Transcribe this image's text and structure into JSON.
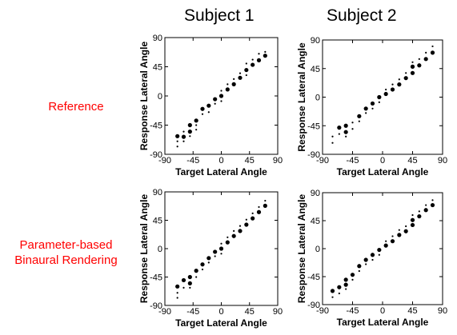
{
  "column_titles": [
    "Subject 1",
    "Subject 2"
  ],
  "row_labels": [
    [
      "Reference"
    ],
    [
      "Parameter-based",
      "Binaural Rendering"
    ]
  ],
  "chart_data": [
    {
      "type": "scatter",
      "panel": "reference-subject-1",
      "xlabel": "Target Lateral Angle",
      "ylabel": "Response Lateral Angle",
      "xlim": [
        -90,
        90
      ],
      "ylim": [
        -90,
        90
      ],
      "xticks": [
        "-90",
        "-45",
        "0",
        "45",
        "90"
      ],
      "yticks": [
        "90",
        "45",
        "0",
        "-45",
        "-90"
      ],
      "grid": false,
      "points": [
        {
          "x": -70,
          "y": -62,
          "size": 2
        },
        {
          "x": -70,
          "y": -70,
          "size": 1
        },
        {
          "x": -70,
          "y": -78,
          "size": 1
        },
        {
          "x": -60,
          "y": -55,
          "size": 1
        },
        {
          "x": -60,
          "y": -63,
          "size": 2
        },
        {
          "x": -60,
          "y": -70,
          "size": 1
        },
        {
          "x": -50,
          "y": -45,
          "size": 2
        },
        {
          "x": -50,
          "y": -55,
          "size": 2
        },
        {
          "x": -50,
          "y": -62,
          "size": 1
        },
        {
          "x": -40,
          "y": -38,
          "size": 2
        },
        {
          "x": -40,
          "y": -45,
          "size": 1
        },
        {
          "x": -40,
          "y": -52,
          "size": 1
        },
        {
          "x": -30,
          "y": -20,
          "size": 2
        },
        {
          "x": -30,
          "y": -28,
          "size": 1
        },
        {
          "x": -20,
          "y": -15,
          "size": 2
        },
        {
          "x": -20,
          "y": -25,
          "size": 1
        },
        {
          "x": -10,
          "y": -5,
          "size": 2
        },
        {
          "x": -10,
          "y": -12,
          "size": 1
        },
        {
          "x": 0,
          "y": 0,
          "size": 2
        },
        {
          "x": 0,
          "y": 8,
          "size": 1
        },
        {
          "x": 0,
          "y": -8,
          "size": 1
        },
        {
          "x": 10,
          "y": 10,
          "size": 2
        },
        {
          "x": 10,
          "y": 18,
          "size": 1
        },
        {
          "x": 20,
          "y": 18,
          "size": 2
        },
        {
          "x": 20,
          "y": 26,
          "size": 1
        },
        {
          "x": 30,
          "y": 28,
          "size": 2
        },
        {
          "x": 30,
          "y": 35,
          "size": 1
        },
        {
          "x": 40,
          "y": 40,
          "size": 2
        },
        {
          "x": 40,
          "y": 50,
          "size": 1
        },
        {
          "x": 40,
          "y": 32,
          "size": 1
        },
        {
          "x": 50,
          "y": 48,
          "size": 2
        },
        {
          "x": 50,
          "y": 56,
          "size": 1
        },
        {
          "x": 60,
          "y": 55,
          "size": 2
        },
        {
          "x": 60,
          "y": 65,
          "size": 1
        },
        {
          "x": 70,
          "y": 62,
          "size": 2
        },
        {
          "x": 70,
          "y": 68,
          "size": 1
        }
      ]
    },
    {
      "type": "scatter",
      "panel": "reference-subject-2",
      "xlabel": "Target Lateral Angle",
      "ylabel": "Response Lateral Angle",
      "xlim": [
        -90,
        90
      ],
      "ylim": [
        -90,
        90
      ],
      "xticks": [
        "-90",
        "-45",
        "0",
        "45",
        "90"
      ],
      "yticks": [
        "90",
        "45",
        "0",
        "-45",
        "-90"
      ],
      "grid": false,
      "points": [
        {
          "x": -75,
          "y": -62,
          "size": 1
        },
        {
          "x": -75,
          "y": -72,
          "size": 1
        },
        {
          "x": -65,
          "y": -48,
          "size": 2
        },
        {
          "x": -65,
          "y": -58,
          "size": 1
        },
        {
          "x": -55,
          "y": -45,
          "size": 2
        },
        {
          "x": -55,
          "y": -55,
          "size": 2
        },
        {
          "x": -55,
          "y": -62,
          "size": 1
        },
        {
          "x": -45,
          "y": -40,
          "size": 1
        },
        {
          "x": -45,
          "y": -50,
          "size": 1
        },
        {
          "x": -35,
          "y": -30,
          "size": 2
        },
        {
          "x": -35,
          "y": -38,
          "size": 1
        },
        {
          "x": -25,
          "y": -18,
          "size": 2
        },
        {
          "x": -25,
          "y": -25,
          "size": 1
        },
        {
          "x": -15,
          "y": -10,
          "size": 2
        },
        {
          "x": -15,
          "y": -18,
          "size": 1
        },
        {
          "x": -5,
          "y": 0,
          "size": 2
        },
        {
          "x": -5,
          "y": -8,
          "size": 1
        },
        {
          "x": 5,
          "y": 5,
          "size": 2
        },
        {
          "x": 5,
          "y": 12,
          "size": 1
        },
        {
          "x": 15,
          "y": 12,
          "size": 2
        },
        {
          "x": 15,
          "y": 20,
          "size": 1
        },
        {
          "x": 25,
          "y": 20,
          "size": 2
        },
        {
          "x": 25,
          "y": 28,
          "size": 1
        },
        {
          "x": 35,
          "y": 30,
          "size": 2
        },
        {
          "x": 35,
          "y": 38,
          "size": 1
        },
        {
          "x": 45,
          "y": 38,
          "size": 2
        },
        {
          "x": 45,
          "y": 48,
          "size": 2
        },
        {
          "x": 45,
          "y": 55,
          "size": 1
        },
        {
          "x": 55,
          "y": 50,
          "size": 2
        },
        {
          "x": 55,
          "y": 60,
          "size": 1
        },
        {
          "x": 65,
          "y": 60,
          "size": 2
        },
        {
          "x": 65,
          "y": 70,
          "size": 1
        },
        {
          "x": 75,
          "y": 70,
          "size": 2
        },
        {
          "x": 75,
          "y": 80,
          "size": 1
        }
      ]
    },
    {
      "type": "scatter",
      "panel": "rendering-subject-1",
      "xlabel": "Target Lateral Angle",
      "ylabel": "Response Lateral Angle",
      "xlim": [
        -90,
        90
      ],
      "ylim": [
        -90,
        90
      ],
      "xticks": [
        "-90",
        "-45",
        "0",
        "45",
        "90"
      ],
      "yticks": [
        "90",
        "45",
        "0",
        "-45",
        "-90"
      ],
      "grid": false,
      "points": [
        {
          "x": -70,
          "y": -60,
          "size": 2
        },
        {
          "x": -70,
          "y": -70,
          "size": 1
        },
        {
          "x": -70,
          "y": -78,
          "size": 1
        },
        {
          "x": -60,
          "y": -50,
          "size": 2
        },
        {
          "x": -60,
          "y": -62,
          "size": 1
        },
        {
          "x": -50,
          "y": -45,
          "size": 2
        },
        {
          "x": -50,
          "y": -55,
          "size": 2
        },
        {
          "x": -50,
          "y": -62,
          "size": 1
        },
        {
          "x": -40,
          "y": -35,
          "size": 2
        },
        {
          "x": -40,
          "y": -45,
          "size": 1
        },
        {
          "x": -30,
          "y": -25,
          "size": 2
        },
        {
          "x": -30,
          "y": -33,
          "size": 1
        },
        {
          "x": -20,
          "y": -15,
          "size": 2
        },
        {
          "x": -20,
          "y": -22,
          "size": 1
        },
        {
          "x": -10,
          "y": -5,
          "size": 2
        },
        {
          "x": -10,
          "y": -12,
          "size": 1
        },
        {
          "x": 0,
          "y": 0,
          "size": 2
        },
        {
          "x": 0,
          "y": 8,
          "size": 1
        },
        {
          "x": 0,
          "y": -8,
          "size": 1
        },
        {
          "x": 10,
          "y": 10,
          "size": 2
        },
        {
          "x": 10,
          "y": 18,
          "size": 1
        },
        {
          "x": 20,
          "y": 20,
          "size": 2
        },
        {
          "x": 20,
          "y": 28,
          "size": 1
        },
        {
          "x": 30,
          "y": 28,
          "size": 2
        },
        {
          "x": 30,
          "y": 36,
          "size": 1
        },
        {
          "x": 40,
          "y": 38,
          "size": 2
        },
        {
          "x": 40,
          "y": 46,
          "size": 1
        },
        {
          "x": 50,
          "y": 48,
          "size": 2
        },
        {
          "x": 50,
          "y": 56,
          "size": 1
        },
        {
          "x": 60,
          "y": 58,
          "size": 2
        },
        {
          "x": 60,
          "y": 66,
          "size": 1
        },
        {
          "x": 70,
          "y": 68,
          "size": 2
        },
        {
          "x": 70,
          "y": 76,
          "size": 1
        }
      ]
    },
    {
      "type": "scatter",
      "panel": "rendering-subject-2",
      "xlabel": "Target Lateral Angle",
      "ylabel": "Response Lateral Angle",
      "xlim": [
        -90,
        90
      ],
      "ylim": [
        -90,
        90
      ],
      "xticks": [
        "-90",
        "-45",
        "0",
        "45",
        "90"
      ],
      "yticks": [
        "90",
        "45",
        "0",
        "-45",
        "-90"
      ],
      "grid": false,
      "points": [
        {
          "x": -75,
          "y": -68,
          "size": 2
        },
        {
          "x": -75,
          "y": -78,
          "size": 1
        },
        {
          "x": -65,
          "y": -62,
          "size": 2
        },
        {
          "x": -65,
          "y": -72,
          "size": 1
        },
        {
          "x": -55,
          "y": -50,
          "size": 2
        },
        {
          "x": -55,
          "y": -58,
          "size": 2
        },
        {
          "x": -55,
          "y": -65,
          "size": 1
        },
        {
          "x": -45,
          "y": -42,
          "size": 2
        },
        {
          "x": -45,
          "y": -50,
          "size": 1
        },
        {
          "x": -35,
          "y": -28,
          "size": 2
        },
        {
          "x": -35,
          "y": -36,
          "size": 1
        },
        {
          "x": -25,
          "y": -18,
          "size": 2
        },
        {
          "x": -25,
          "y": -25,
          "size": 1
        },
        {
          "x": -15,
          "y": -10,
          "size": 2
        },
        {
          "x": -15,
          "y": -18,
          "size": 1
        },
        {
          "x": -5,
          "y": -2,
          "size": 2
        },
        {
          "x": -5,
          "y": -10,
          "size": 1
        },
        {
          "x": 5,
          "y": 5,
          "size": 2
        },
        {
          "x": 5,
          "y": 12,
          "size": 1
        },
        {
          "x": 15,
          "y": 12,
          "size": 2
        },
        {
          "x": 15,
          "y": 20,
          "size": 1
        },
        {
          "x": 25,
          "y": 22,
          "size": 2
        },
        {
          "x": 25,
          "y": 30,
          "size": 1
        },
        {
          "x": 35,
          "y": 28,
          "size": 2
        },
        {
          "x": 35,
          "y": 36,
          "size": 1
        },
        {
          "x": 45,
          "y": 38,
          "size": 2
        },
        {
          "x": 45,
          "y": 46,
          "size": 2
        },
        {
          "x": 45,
          "y": 54,
          "size": 1
        },
        {
          "x": 55,
          "y": 52,
          "size": 2
        },
        {
          "x": 55,
          "y": 60,
          "size": 1
        },
        {
          "x": 65,
          "y": 62,
          "size": 2
        },
        {
          "x": 65,
          "y": 70,
          "size": 1
        },
        {
          "x": 75,
          "y": 70,
          "size": 2
        },
        {
          "x": 75,
          "y": 78,
          "size": 1
        }
      ]
    }
  ]
}
